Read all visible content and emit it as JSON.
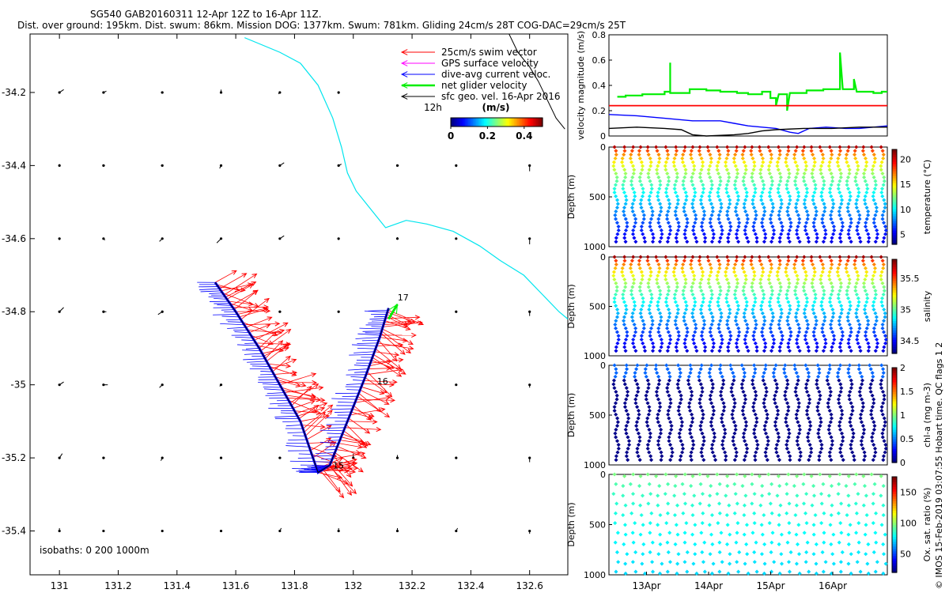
{
  "header": {
    "line1": "SG540 GAB20160311 12-Apr 12Z to 16-Apr 11Z.",
    "line2": "Dist. over ground: 195km. Dist. swum: 86km. Mission DOG: 1377km. Swum: 781km. Gliding 24cm/s 28T COG-DAC=29cm/s 25T"
  },
  "side_note": "© IMOS 15-Feb-2019 03:07:55 Hobart time. QC flags 1  2",
  "colors": {
    "coast": "#00e5ee",
    "swim": "#ff0000",
    "gps": "#ff00ff",
    "dac": "#0000ff",
    "net": "#00ee00",
    "geo": "#000000",
    "oxy": "#12b58a"
  },
  "chart_data": [
    {
      "id": "map",
      "type": "scatter",
      "title": "",
      "xlabel": "",
      "ylabel": "",
      "xlim": [
        130.9,
        132.73
      ],
      "ylim": [
        -35.52,
        -34.04
      ],
      "x_ticks": [
        "131",
        "131.2",
        "131.4",
        "131.6",
        "131.8",
        "132",
        "132.2",
        "132.4",
        "132.6"
      ],
      "y_ticks": [
        "-34.2",
        "-34.4",
        "-34.6",
        "-34.8",
        "-35",
        "-35.2",
        "-35.4"
      ],
      "legend": [
        {
          "label": "25cm/s swim vector",
          "color": "#ff0000"
        },
        {
          "label": "GPS surface velocity",
          "color": "#ff00ff"
        },
        {
          "label": "dive-avg current veloc.",
          "color": "#0000ff"
        },
        {
          "label": "net glider velocity",
          "color": "#00ee00"
        },
        {
          "label": "sfc geo. vel. 16-Apr 2016",
          "color": "#000000"
        }
      ],
      "legend_extra": "12h",
      "colorbar": {
        "title": "(m/s)",
        "ticks": [
          "0",
          "0.2",
          "0.4"
        ],
        "range": [
          0,
          0.5
        ]
      },
      "isobaths_label": "isobaths: 0   200  1000m",
      "day_labels": [
        {
          "text": "15",
          "lon": 131.92,
          "lat": -35.22
        },
        {
          "text": "16",
          "lon": 132.07,
          "lat": -34.99
        },
        {
          "text": "17",
          "lon": 132.14,
          "lat": -34.76
        }
      ],
      "track": [
        [
          131.53,
          -34.72
        ],
        [
          131.6,
          -34.8
        ],
        [
          131.68,
          -34.9
        ],
        [
          131.75,
          -35.0
        ],
        [
          131.82,
          -35.1
        ],
        [
          131.88,
          -35.24
        ],
        [
          131.92,
          -35.22
        ],
        [
          131.98,
          -35.1
        ],
        [
          132.04,
          -34.98
        ],
        [
          132.09,
          -34.87
        ],
        [
          132.12,
          -34.79
        ]
      ],
      "net_arrow": {
        "from": [
          132.12,
          -34.82
        ],
        "to": [
          132.15,
          -34.78
        ]
      },
      "coastline": [
        [
          131.63,
          -34.05
        ],
        [
          131.75,
          -34.09
        ],
        [
          131.82,
          -34.12
        ],
        [
          131.88,
          -34.18
        ],
        [
          131.93,
          -34.27
        ],
        [
          131.96,
          -34.35
        ],
        [
          131.98,
          -34.42
        ],
        [
          132.01,
          -34.47
        ],
        [
          132.05,
          -34.51
        ],
        [
          132.08,
          -34.54
        ],
        [
          132.11,
          -34.57
        ],
        [
          132.18,
          -34.55
        ],
        [
          132.25,
          -34.56
        ],
        [
          132.34,
          -34.58
        ],
        [
          132.43,
          -34.62
        ],
        [
          132.5,
          -34.66
        ],
        [
          132.58,
          -34.7
        ],
        [
          132.64,
          -34.75
        ],
        [
          132.7,
          -34.8
        ],
        [
          132.73,
          -34.82
        ]
      ],
      "isobath_1000": [
        [
          132.53,
          -34.04
        ],
        [
          132.56,
          -34.09
        ],
        [
          132.6,
          -34.13
        ],
        [
          132.63,
          -34.17
        ],
        [
          132.66,
          -34.22
        ],
        [
          132.69,
          -34.27
        ],
        [
          132.72,
          -34.3
        ]
      ],
      "geo_vectors": [
        [
          131.0,
          -34.2,
          0.03,
          0.02
        ],
        [
          131.15,
          -34.2,
          0.02,
          0.01
        ],
        [
          131.35,
          -34.2,
          -0.01,
          0.0
        ],
        [
          131.55,
          -34.2,
          0.0,
          0.02
        ],
        [
          131.75,
          -34.2,
          -0.01,
          -0.01
        ],
        [
          131.95,
          -34.2,
          0.0,
          -0.01
        ],
        [
          132.6,
          -34.28,
          0.0,
          -0.03
        ],
        [
          131.0,
          -34.4,
          0.0,
          0.01
        ],
        [
          131.15,
          -34.4,
          0.01,
          0.0
        ],
        [
          131.35,
          -34.4,
          -0.01,
          0.0
        ],
        [
          131.55,
          -34.4,
          -0.01,
          -0.02
        ],
        [
          131.75,
          -34.4,
          0.03,
          0.02
        ],
        [
          131.95,
          -34.4,
          0.02,
          0.01
        ],
        [
          132.15,
          -34.4,
          0.01,
          0.0
        ],
        [
          132.35,
          -34.4,
          0.0,
          -0.01
        ],
        [
          132.6,
          -34.4,
          0.0,
          -0.04
        ],
        [
          131.0,
          -34.6,
          0.0,
          -0.01
        ],
        [
          131.15,
          -34.6,
          0.01,
          -0.01
        ],
        [
          131.35,
          -34.6,
          -0.02,
          -0.02
        ],
        [
          131.55,
          -34.6,
          -0.03,
          -0.03
        ],
        [
          131.75,
          -34.6,
          0.03,
          0.02
        ],
        [
          131.95,
          -34.6,
          0.0,
          -0.01
        ],
        [
          132.15,
          -34.6,
          0.0,
          0.01
        ],
        [
          132.35,
          -34.6,
          0.0,
          0.0
        ],
        [
          132.6,
          -34.6,
          0.0,
          -0.04
        ],
        [
          131.0,
          -34.8,
          0.03,
          0.03
        ],
        [
          131.15,
          -34.8,
          0.02,
          0.0
        ],
        [
          131.35,
          -34.8,
          -0.03,
          -0.02
        ],
        [
          131.75,
          -34.8,
          0.01,
          0.0
        ],
        [
          131.95,
          -34.8,
          0.0,
          0.0
        ],
        [
          132.35,
          -34.8,
          0.0,
          0.0
        ],
        [
          132.6,
          -34.8,
          0.0,
          -0.03
        ],
        [
          131.0,
          -35.0,
          0.03,
          0.02
        ],
        [
          131.15,
          -35.0,
          0.03,
          0.0
        ],
        [
          131.35,
          -35.0,
          -0.02,
          -0.02
        ],
        [
          131.55,
          -35.0,
          -0.01,
          -0.01
        ],
        [
          132.35,
          -35.0,
          0.0,
          0.0
        ],
        [
          132.6,
          -35.0,
          0.0,
          -0.02
        ],
        [
          131.0,
          -35.2,
          0.02,
          0.03
        ],
        [
          131.15,
          -35.2,
          0.01,
          0.0
        ],
        [
          131.35,
          -35.2,
          -0.01,
          -0.02
        ],
        [
          131.55,
          -35.2,
          0.0,
          0.0
        ],
        [
          131.75,
          -35.2,
          0.01,
          0.0
        ],
        [
          132.0,
          -35.2,
          0.0,
          0.03
        ],
        [
          132.15,
          -35.2,
          0.0,
          0.02
        ],
        [
          132.35,
          -35.2,
          0.0,
          0.0
        ],
        [
          132.6,
          -35.2,
          0.0,
          -0.03
        ],
        [
          131.0,
          -35.4,
          0.0,
          0.02
        ],
        [
          131.15,
          -35.4,
          0.0,
          0.0
        ],
        [
          131.35,
          -35.4,
          0.0,
          0.0
        ],
        [
          131.55,
          -35.4,
          0.0,
          0.0
        ],
        [
          131.75,
          -35.4,
          0.01,
          0.02
        ],
        [
          131.95,
          -35.4,
          0.0,
          0.02
        ],
        [
          132.15,
          -35.4,
          0.0,
          0.02
        ],
        [
          132.35,
          -35.4,
          0.01,
          0.02
        ],
        [
          132.6,
          -35.4,
          0.0,
          -0.02
        ]
      ]
    },
    {
      "id": "velocity",
      "type": "line",
      "xlabel": "",
      "ylabel": "velocity magnitude (m/s)",
      "xlim": [
        0,
        1
      ],
      "ylim": [
        0,
        0.8
      ],
      "y_ticks": [
        "0",
        "0.2",
        "0.4",
        "0.6",
        "0.8"
      ],
      "series": [
        {
          "id": "net",
          "color": "#00ee00",
          "values": [
            [
              0.03,
              0.31
            ],
            [
              0.06,
              0.31
            ],
            [
              0.06,
              0.32
            ],
            [
              0.12,
              0.32
            ],
            [
              0.12,
              0.33
            ],
            [
              0.2,
              0.33
            ],
            [
              0.2,
              0.35
            ],
            [
              0.22,
              0.35
            ],
            [
              0.22,
              0.58
            ],
            [
              0.22,
              0.34
            ],
            [
              0.29,
              0.34
            ],
            [
              0.29,
              0.37
            ],
            [
              0.35,
              0.37
            ],
            [
              0.35,
              0.36
            ],
            [
              0.4,
              0.36
            ],
            [
              0.4,
              0.35
            ],
            [
              0.46,
              0.35
            ],
            [
              0.46,
              0.34
            ],
            [
              0.5,
              0.34
            ],
            [
              0.5,
              0.33
            ],
            [
              0.55,
              0.33
            ],
            [
              0.55,
              0.35
            ],
            [
              0.58,
              0.35
            ],
            [
              0.58,
              0.3
            ],
            [
              0.6,
              0.3
            ],
            [
              0.6,
              0.24
            ],
            [
              0.61,
              0.33
            ],
            [
              0.64,
              0.33
            ],
            [
              0.64,
              0.2
            ],
            [
              0.65,
              0.34
            ],
            [
              0.71,
              0.34
            ],
            [
              0.71,
              0.36
            ],
            [
              0.77,
              0.36
            ],
            [
              0.77,
              0.37
            ],
            [
              0.83,
              0.37
            ],
            [
              0.83,
              0.66
            ],
            [
              0.84,
              0.37
            ],
            [
              0.88,
              0.37
            ],
            [
              0.88,
              0.45
            ],
            [
              0.89,
              0.35
            ],
            [
              0.95,
              0.35
            ],
            [
              0.95,
              0.34
            ],
            [
              0.98,
              0.34
            ],
            [
              0.98,
              0.35
            ],
            [
              1.0,
              0.35
            ]
          ]
        },
        {
          "id": "swim",
          "color": "#ff0000",
          "values": [
            [
              0.0,
              0.24
            ],
            [
              1.0,
              0.24
            ]
          ]
        },
        {
          "id": "dac",
          "color": "#0000ff",
          "values": [
            [
              0.0,
              0.17
            ],
            [
              0.1,
              0.16
            ],
            [
              0.2,
              0.14
            ],
            [
              0.3,
              0.12
            ],
            [
              0.4,
              0.12
            ],
            [
              0.45,
              0.1
            ],
            [
              0.5,
              0.08
            ],
            [
              0.55,
              0.07
            ],
            [
              0.6,
              0.06
            ],
            [
              0.65,
              0.03
            ],
            [
              0.68,
              0.02
            ],
            [
              0.72,
              0.06
            ],
            [
              0.78,
              0.07
            ],
            [
              0.85,
              0.06
            ],
            [
              0.9,
              0.06
            ],
            [
              1.0,
              0.08
            ]
          ]
        },
        {
          "id": "geo",
          "color": "#000000",
          "values": [
            [
              0.0,
              0.06
            ],
            [
              0.1,
              0.07
            ],
            [
              0.2,
              0.06
            ],
            [
              0.26,
              0.05
            ],
            [
              0.3,
              0.01
            ],
            [
              0.35,
              0.0
            ],
            [
              0.45,
              0.01
            ],
            [
              0.5,
              0.02
            ],
            [
              0.55,
              0.04
            ],
            [
              0.6,
              0.05
            ],
            [
              0.7,
              0.06
            ],
            [
              0.8,
              0.06
            ],
            [
              0.9,
              0.07
            ],
            [
              1.0,
              0.07
            ]
          ]
        }
      ]
    },
    {
      "id": "temperature",
      "type": "scatter",
      "ylabel": "Depth (m)",
      "ylim": [
        1000,
        0
      ],
      "y_ticks": [
        "0",
        "500",
        "1000"
      ],
      "colorbar": {
        "label": "temperature (°C)",
        "ticks": [
          "5",
          "10",
          "15",
          "20"
        ],
        "range": [
          3,
          22
        ]
      },
      "n_dives": 32,
      "surface_value": 21,
      "deep_value": 4.5
    },
    {
      "id": "salinity",
      "type": "scatter",
      "ylabel": "Depth (m)",
      "ylim": [
        1000,
        0
      ],
      "y_ticks": [
        "0",
        "500",
        "1000"
      ],
      "colorbar": {
        "label": "salinity",
        "ticks": [
          "34.5",
          "35",
          "35.5"
        ],
        "range": [
          34.3,
          35.8
        ]
      },
      "n_dives": 32,
      "surface_value": 35.75,
      "deep_value": 34.4
    },
    {
      "id": "chla",
      "type": "scatter",
      "ylabel": "Depth (m)",
      "ylim": [
        1000,
        0
      ],
      "y_ticks": [
        "0",
        "500",
        "1000"
      ],
      "colorbar": {
        "label": "chl-a (mg m-3)",
        "ticks": [
          "0",
          "0.5",
          "1",
          "1.5",
          "2"
        ],
        "range": [
          0,
          2
        ]
      },
      "n_dives": 26,
      "surface_value": 0.45,
      "deep_value": 0.02
    },
    {
      "id": "oxygen",
      "type": "scatter",
      "ylabel": "Depth (m)",
      "ylim": [
        1000,
        0
      ],
      "y_ticks": [
        "0",
        "500",
        "1000"
      ],
      "x_ticks": [
        "13Apr",
        "14Apr",
        "15Apr",
        "16Apr"
      ],
      "colorbar": {
        "label": "Ox. sat. ratio (%)",
        "ticks": [
          "50",
          "100",
          "150"
        ],
        "range": [
          20,
          175
        ]
      },
      "n_dives": 32,
      "surface_value": 97,
      "deep_value": 72
    }
  ]
}
